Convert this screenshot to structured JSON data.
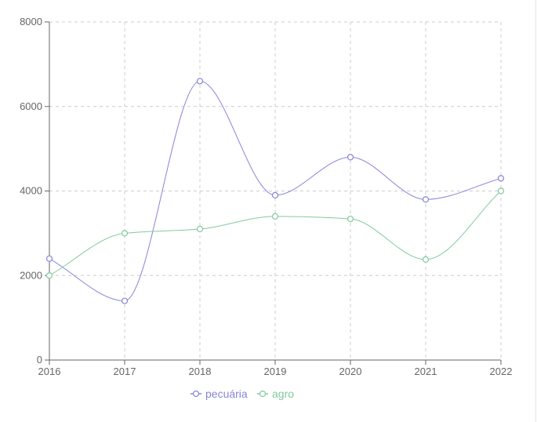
{
  "chart_data": {
    "type": "line",
    "x": [
      "2016",
      "2017",
      "2018",
      "2019",
      "2020",
      "2021",
      "2022"
    ],
    "y_ticks": [
      "0",
      "2000",
      "4000",
      "6000",
      "8000"
    ],
    "ylim": [
      0,
      8000
    ],
    "grid": true,
    "legend_position": "bottom-center",
    "series": [
      {
        "name": "pecuária",
        "color": "#8884d8",
        "values": [
          2400,
          1400,
          6600,
          3900,
          4800,
          3800,
          4300
        ]
      },
      {
        "name": "agro",
        "color": "#82ca9d",
        "values": [
          2000,
          3000,
          3100,
          3400,
          3340,
          2380,
          4000
        ]
      }
    ]
  }
}
